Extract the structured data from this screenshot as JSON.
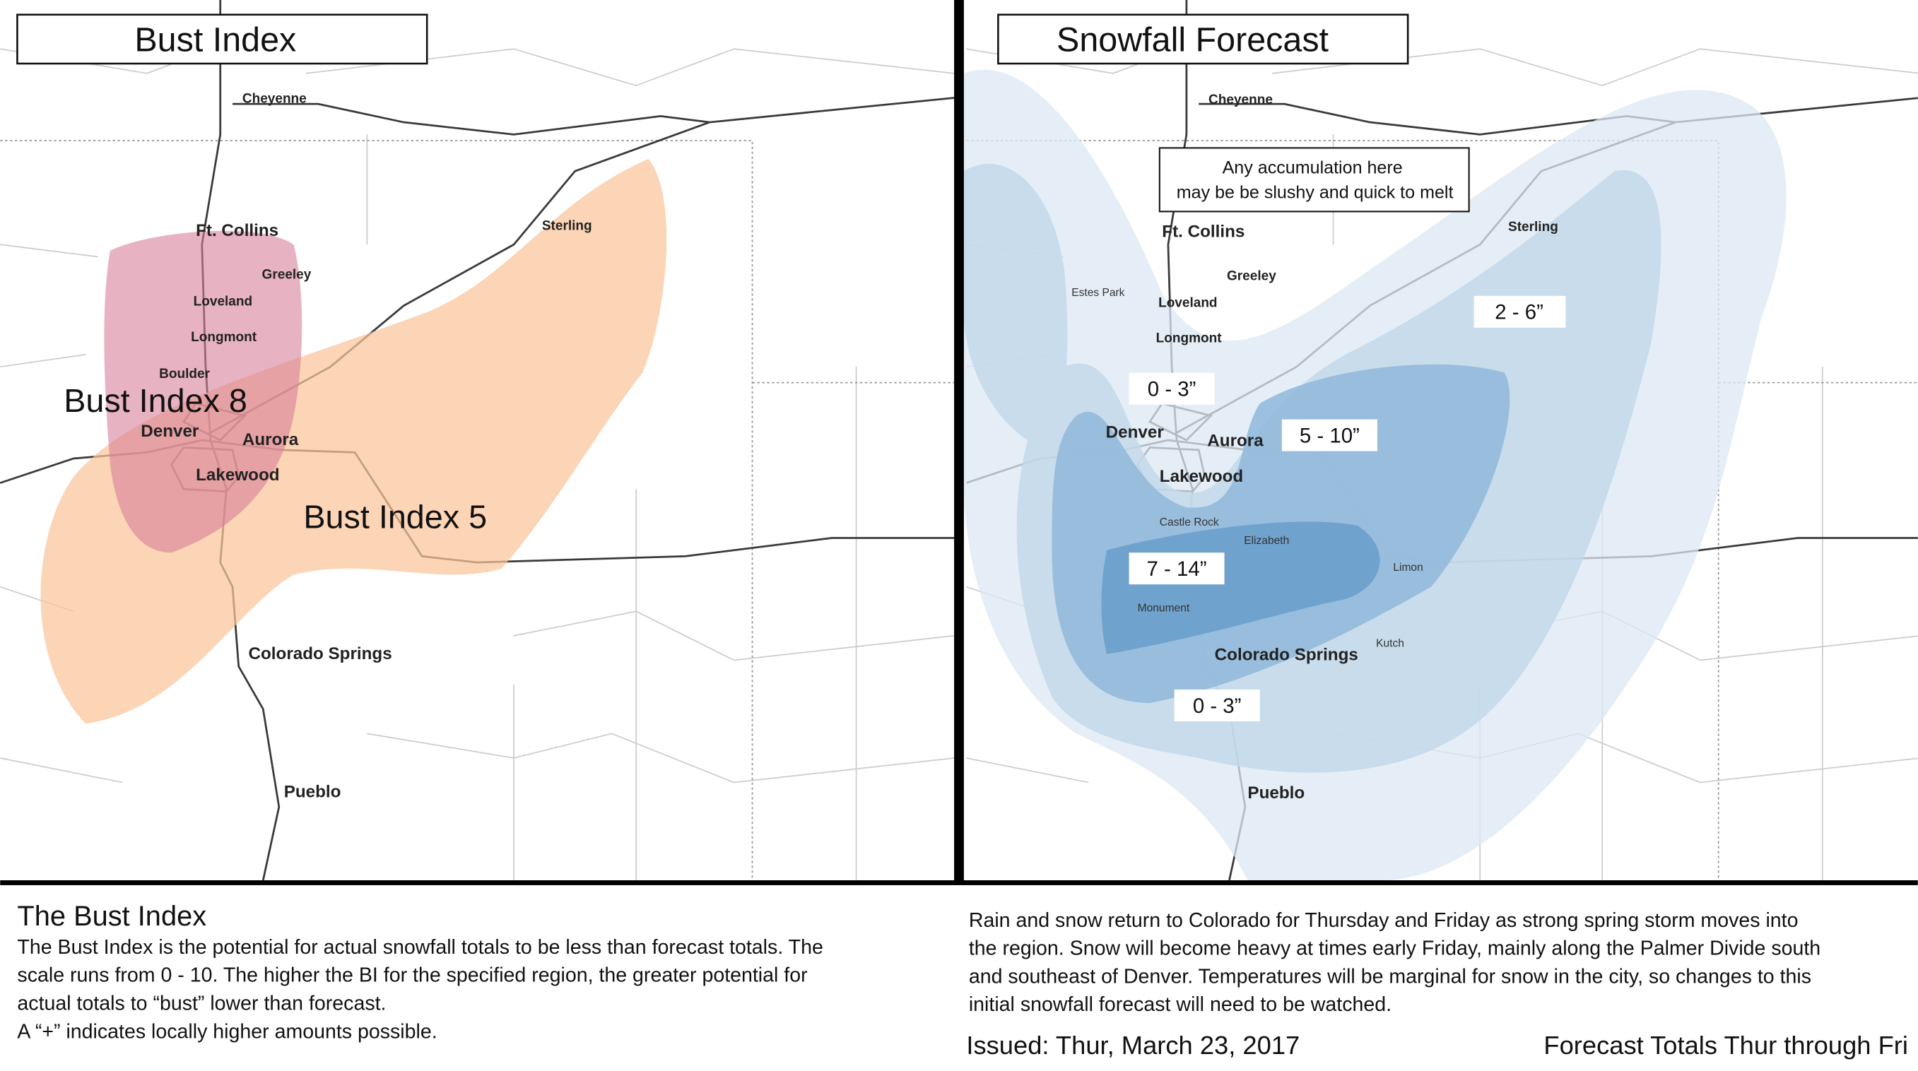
{
  "left_panel": {
    "title": "Bust Index",
    "cities": [
      "Cheyenne",
      "Ft. Collins",
      "Greeley",
      "Loveland",
      "Longmont",
      "Boulder",
      "Denver",
      "Aurora",
      "Lakewood",
      "Sterling",
      "Colorado Springs",
      "Pueblo"
    ],
    "zones": [
      "Bust Index 8",
      "Bust Index 5"
    ]
  },
  "right_panel": {
    "title": "Snowfall Forecast",
    "callout": [
      "Any accumulation here",
      "may be be slushy and quick to melt"
    ],
    "cities": [
      "Cheyenne",
      "Ft. Collins",
      "Greeley",
      "Estes Park",
      "Loveland",
      "Longmont",
      "Denver",
      "Aurora",
      "Lakewood",
      "Castle Rock",
      "Elizabeth",
      "Sterling",
      "Limon",
      "Monument",
      "Kutch",
      "Colorado Springs",
      "Pueblo"
    ],
    "zones": [
      "0 - 3”",
      "5 - 10”",
      "2 - 6”",
      "7 - 14”",
      "0 - 3”"
    ]
  },
  "description": {
    "title": "The Bust Index",
    "lines": [
      "The Bust Index is the potential for actual snowfall totals to be less than forecast totals. The",
      "scale runs from 0 - 10. The higher the BI for the specified region, the greater potential for",
      "actual totals to “bust” lower than forecast.",
      "A “+” indicates locally higher amounts possible."
    ]
  },
  "summary": {
    "lines": [
      "Rain and snow return to Colorado for Thursday and Friday as strong spring storm moves into",
      "the region. Snow will become heavy at times early Friday, mainly along the Palmer Divide south",
      "and southeast of Denver. Temperatures will be marginal for snow in the city, so changes to this",
      "initial snowfall forecast will need to be watched."
    ]
  },
  "issued": "Issued: Thur, March 23, 2017",
  "forecast_note": "Forecast Totals Thur through Fri"
}
